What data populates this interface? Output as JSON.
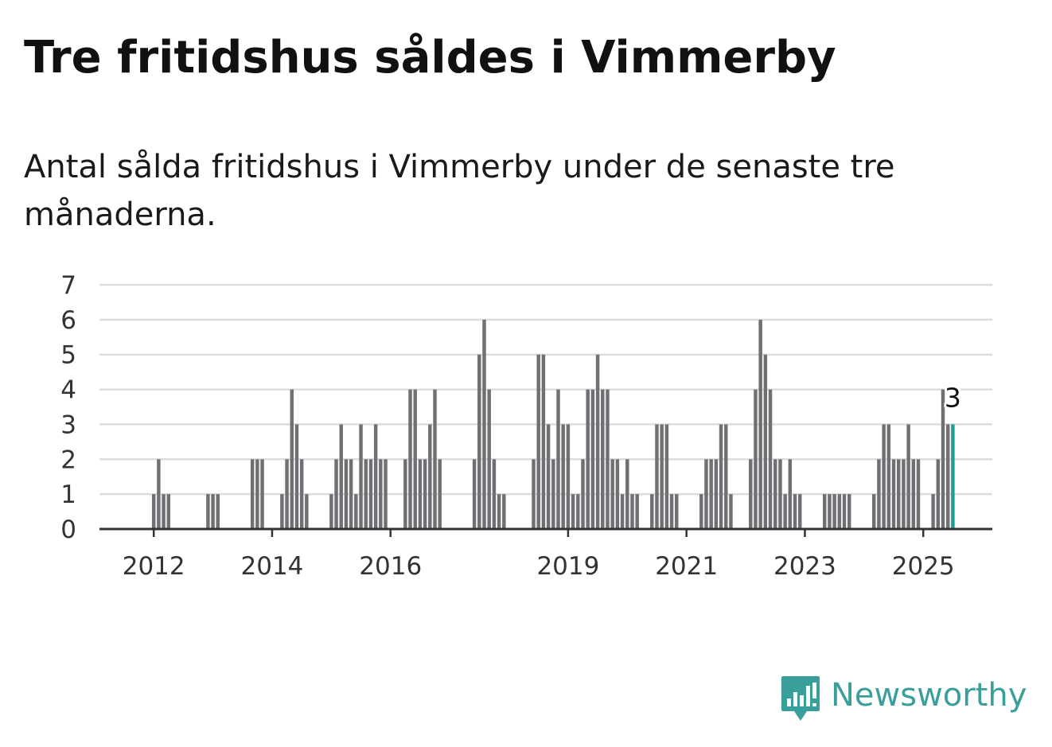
{
  "header": {
    "title": "Tre fritidshus såldes i Vimmerby",
    "subtitle": "Antal sålda fritidshus i Vimmerby under de senaste tre månaderna."
  },
  "logo": {
    "text": "Newsworthy",
    "icon": "bar-chart-speech-bubble-icon",
    "color": "#3a9f9a"
  },
  "colors": {
    "bar": "#707074",
    "highlight": "#1a9e98",
    "grid": "#dddddd",
    "axis": "#333333"
  },
  "chart_data": {
    "type": "bar",
    "title": "Tre fritidshus såldes i Vimmerby",
    "subtitle": "Antal sålda fritidshus i Vimmerby under de senaste tre månaderna.",
    "xlabel": "",
    "ylabel": "",
    "ylim": [
      0,
      7
    ],
    "yticks": [
      0,
      1,
      2,
      3,
      4,
      5,
      6,
      7
    ],
    "xlim": [
      "2011-02",
      "2026-03"
    ],
    "x_tick_labels": [
      {
        "label": "2012",
        "date": "2012-01"
      },
      {
        "label": "2014",
        "date": "2014-01"
      },
      {
        "label": "2016",
        "date": "2016-01"
      },
      {
        "label": "2019",
        "date": "2019-01"
      },
      {
        "label": "2021",
        "date": "2021-01"
      },
      {
        "label": "2023",
        "date": "2023-01"
      },
      {
        "label": "2025",
        "date": "2025-01"
      }
    ],
    "grid": true,
    "legend": "none",
    "highlight_last": true,
    "annotation": {
      "text": "3",
      "date": "2025-07"
    },
    "series": [
      {
        "points": [
          [
            "2012-01",
            1
          ],
          [
            "2012-02",
            2
          ],
          [
            "2012-03",
            1
          ],
          [
            "2012-04",
            1
          ],
          [
            "2012-12",
            1
          ],
          [
            "2013-01",
            1
          ],
          [
            "2013-02",
            1
          ],
          [
            "2013-09",
            2
          ],
          [
            "2013-10",
            2
          ],
          [
            "2013-11",
            2
          ],
          [
            "2014-03",
            1
          ],
          [
            "2014-04",
            2
          ],
          [
            "2014-05",
            4
          ],
          [
            "2014-06",
            3
          ],
          [
            "2014-07",
            2
          ],
          [
            "2014-08",
            1
          ],
          [
            "2015-01",
            1
          ],
          [
            "2015-02",
            2
          ],
          [
            "2015-03",
            3
          ],
          [
            "2015-04",
            2
          ],
          [
            "2015-05",
            2
          ],
          [
            "2015-06",
            1
          ],
          [
            "2015-07",
            3
          ],
          [
            "2015-08",
            2
          ],
          [
            "2015-09",
            2
          ],
          [
            "2015-10",
            3
          ],
          [
            "2015-11",
            2
          ],
          [
            "2015-12",
            2
          ],
          [
            "2016-04",
            2
          ],
          [
            "2016-05",
            4
          ],
          [
            "2016-06",
            4
          ],
          [
            "2016-07",
            2
          ],
          [
            "2016-08",
            2
          ],
          [
            "2016-09",
            3
          ],
          [
            "2016-10",
            4
          ],
          [
            "2016-11",
            2
          ],
          [
            "2017-06",
            2
          ],
          [
            "2017-07",
            5
          ],
          [
            "2017-08",
            6
          ],
          [
            "2017-09",
            4
          ],
          [
            "2017-10",
            2
          ],
          [
            "2017-11",
            1
          ],
          [
            "2017-12",
            1
          ],
          [
            "2018-06",
            2
          ],
          [
            "2018-07",
            5
          ],
          [
            "2018-08",
            5
          ],
          [
            "2018-09",
            3
          ],
          [
            "2018-10",
            2
          ],
          [
            "2018-11",
            4
          ],
          [
            "2018-12",
            3
          ],
          [
            "2019-01",
            3
          ],
          [
            "2019-02",
            1
          ],
          [
            "2019-03",
            1
          ],
          [
            "2019-04",
            2
          ],
          [
            "2019-05",
            4
          ],
          [
            "2019-06",
            4
          ],
          [
            "2019-07",
            5
          ],
          [
            "2019-08",
            4
          ],
          [
            "2019-09",
            4
          ],
          [
            "2019-10",
            2
          ],
          [
            "2019-11",
            2
          ],
          [
            "2019-12",
            1
          ],
          [
            "2020-01",
            2
          ],
          [
            "2020-02",
            1
          ],
          [
            "2020-03",
            1
          ],
          [
            "2020-06",
            1
          ],
          [
            "2020-07",
            3
          ],
          [
            "2020-08",
            3
          ],
          [
            "2020-09",
            3
          ],
          [
            "2020-10",
            1
          ],
          [
            "2020-11",
            1
          ],
          [
            "2021-04",
            1
          ],
          [
            "2021-05",
            2
          ],
          [
            "2021-06",
            2
          ],
          [
            "2021-07",
            2
          ],
          [
            "2021-08",
            3
          ],
          [
            "2021-09",
            3
          ],
          [
            "2021-10",
            1
          ],
          [
            "2022-02",
            2
          ],
          [
            "2022-03",
            4
          ],
          [
            "2022-04",
            6
          ],
          [
            "2022-05",
            5
          ],
          [
            "2022-06",
            4
          ],
          [
            "2022-07",
            2
          ],
          [
            "2022-08",
            2
          ],
          [
            "2022-09",
            1
          ],
          [
            "2022-10",
            2
          ],
          [
            "2022-11",
            1
          ],
          [
            "2022-12",
            1
          ],
          [
            "2023-05",
            1
          ],
          [
            "2023-06",
            1
          ],
          [
            "2023-07",
            1
          ],
          [
            "2023-08",
            1
          ],
          [
            "2023-09",
            1
          ],
          [
            "2023-10",
            1
          ],
          [
            "2024-03",
            1
          ],
          [
            "2024-04",
            2
          ],
          [
            "2024-05",
            3
          ],
          [
            "2024-06",
            3
          ],
          [
            "2024-07",
            2
          ],
          [
            "2024-08",
            2
          ],
          [
            "2024-09",
            2
          ],
          [
            "2024-10",
            3
          ],
          [
            "2024-11",
            2
          ],
          [
            "2024-12",
            2
          ],
          [
            "2025-03",
            1
          ],
          [
            "2025-04",
            2
          ],
          [
            "2025-05",
            4
          ],
          [
            "2025-06",
            3
          ],
          [
            "2025-07",
            3
          ]
        ]
      }
    ]
  }
}
